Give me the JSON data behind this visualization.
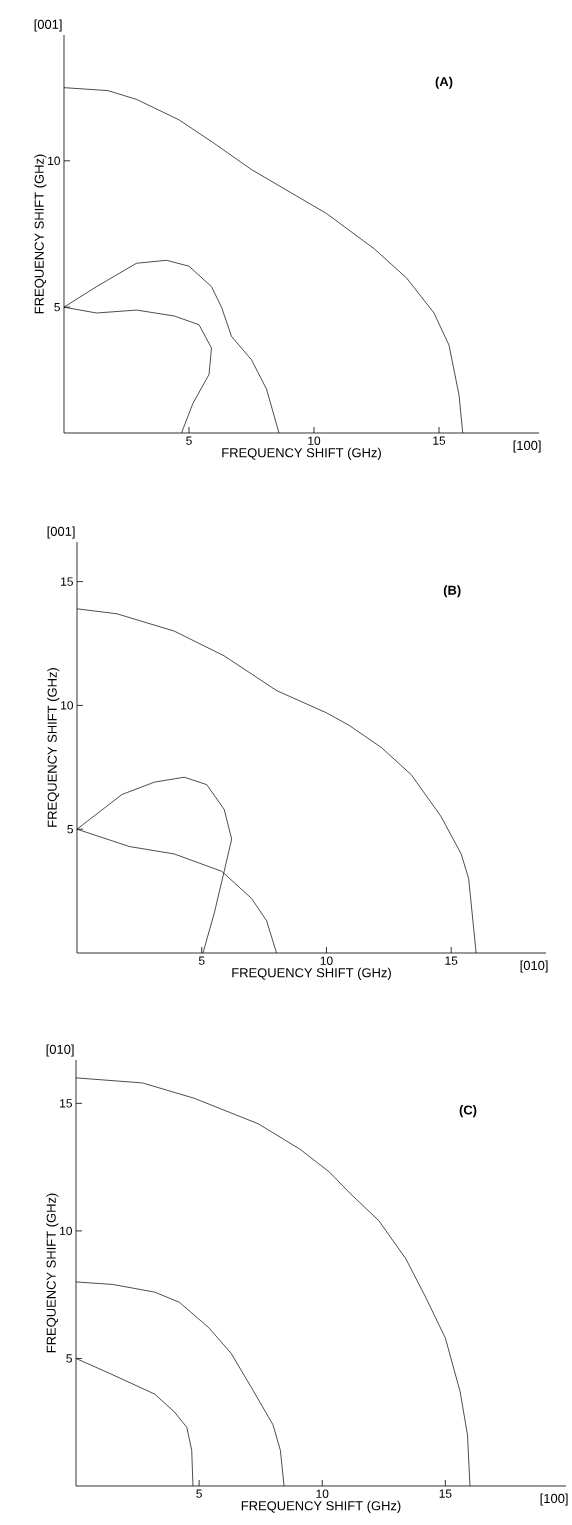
{
  "chart_data": [
    {
      "type": "line",
      "title": "(A)",
      "xlabel": "FREQUENCY SHIFT (GHz)",
      "ylabel": "FREQUENCY SHIFT (GHz)",
      "annotations": [
        "[001]",
        "[100]"
      ],
      "xlim": [
        0,
        19
      ],
      "ylim": [
        0.7,
        14.3
      ],
      "xticks": [
        5,
        10,
        15
      ],
      "yticks": [
        5,
        10
      ],
      "series": [
        {
          "color": "#000000",
          "x": [
            0,
            1.75,
            2.9,
            4.6,
            6.0,
            7.5,
            8.7,
            10.5,
            12.4,
            13.7,
            14.8,
            15.4,
            15.8,
            15.95
          ],
          "values": [
            12.5,
            12.4,
            12.1,
            11.4,
            10.6,
            9.7,
            9.1,
            8.2,
            7.0,
            6.0,
            4.8,
            3.7,
            2.0,
            0.7
          ]
        },
        {
          "color": "#000000",
          "x": [
            0,
            1.3,
            2.9,
            4.1,
            5.0,
            5.9,
            6.3,
            6.7,
            7.5,
            8.1,
            8.6
          ],
          "values": [
            5.0,
            5.7,
            6.5,
            6.6,
            6.4,
            5.7,
            5.0,
            4.0,
            3.2,
            2.2,
            0.7
          ]
        },
        {
          "color": "#000000",
          "x": [
            0,
            1.3,
            2.9,
            4.4,
            5.4,
            5.9,
            5.8,
            5.15,
            4.7
          ],
          "values": [
            5.0,
            4.8,
            4.9,
            4.7,
            4.4,
            3.6,
            2.7,
            1.7,
            0.7
          ]
        }
      ]
    },
    {
      "type": "line",
      "title": "(B)",
      "xlabel": "FREQUENCY SHIFT (GHz)",
      "ylabel": "FREQUENCY SHIFT (GHz)",
      "annotations": [
        "[001]",
        "[010]"
      ],
      "xlim": [
        0,
        18.8
      ],
      "ylim": [
        0,
        16.6
      ],
      "xticks": [
        5,
        10,
        15
      ],
      "yticks": [
        5,
        10,
        15
      ],
      "series": [
        {
          "color": "#000000",
          "x": [
            0,
            1.6,
            3.9,
            5.9,
            8.0,
            10.0,
            10.9,
            12.2,
            13.4,
            14.6,
            15.4,
            15.7,
            16.0
          ],
          "values": [
            13.9,
            13.7,
            13.0,
            12.0,
            10.6,
            9.7,
            9.2,
            8.3,
            7.2,
            5.5,
            4.0,
            3.0,
            0
          ]
        },
        {
          "color": "#000000",
          "x": [
            0,
            1.8,
            3.1,
            4.3,
            5.2,
            5.9,
            6.2,
            5.9,
            5.5,
            5.05
          ],
          "values": [
            5.0,
            6.4,
            6.9,
            7.1,
            6.8,
            5.8,
            4.6,
            3.3,
            1.6,
            0
          ]
        },
        {
          "color": "#000000",
          "x": [
            0,
            2.1,
            3.9,
            5.8,
            7.0,
            7.6,
            8.0
          ],
          "values": [
            5.0,
            4.3,
            4.0,
            3.3,
            2.2,
            1.3,
            0
          ]
        }
      ]
    },
    {
      "type": "line",
      "title": "(C)",
      "xlabel": "FREQUENCY SHIFT (GHz)",
      "ylabel": "FREQUENCY SHIFT (GHz)",
      "annotations": [
        "[010]",
        "[100]"
      ],
      "xlim": [
        0,
        19.9
      ],
      "ylim": [
        0,
        16.7
      ],
      "xticks": [
        5,
        10,
        15
      ],
      "yticks": [
        5,
        10,
        15
      ],
      "series": [
        {
          "color": "#000000",
          "x": [
            0,
            2.7,
            4.8,
            7.4,
            9.1,
            10.3,
            11.1,
            12.3,
            13.4,
            14.2,
            15.0,
            15.6,
            15.9,
            16.0
          ],
          "values": [
            16.0,
            15.8,
            15.2,
            14.2,
            13.2,
            12.3,
            11.5,
            10.4,
            8.9,
            7.4,
            5.8,
            3.7,
            2.0,
            0
          ]
        },
        {
          "color": "#000000",
          "x": [
            0,
            1.5,
            3.2,
            4.2,
            5.4,
            6.3,
            7.1,
            8.0,
            8.3,
            8.45
          ],
          "values": [
            8.0,
            7.9,
            7.6,
            7.2,
            6.2,
            5.2,
            3.9,
            2.4,
            1.4,
            0
          ]
        },
        {
          "color": "#000000",
          "x": [
            0,
            1.4,
            3.2,
            4.0,
            4.5,
            4.7,
            4.75
          ],
          "values": [
            5.0,
            4.4,
            3.6,
            2.9,
            2.3,
            1.4,
            0
          ]
        }
      ]
    }
  ]
}
